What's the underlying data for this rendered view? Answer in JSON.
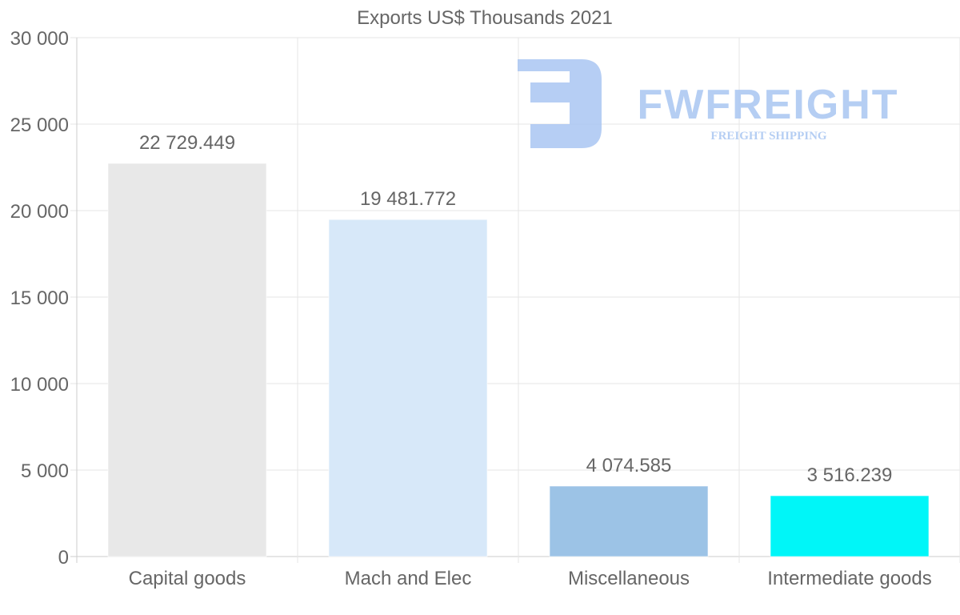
{
  "chart_data": {
    "type": "bar",
    "title": "Exports US$ Thousands 2021",
    "categories": [
      "Capital goods",
      "Mach and Elec",
      "Miscellaneous",
      "Intermediate goods"
    ],
    "values": [
      22729.449,
      19481.772,
      4074.585,
      3516.239
    ],
    "data_labels": [
      "22 729.449",
      "19 481.772",
      "4 074.585",
      "3 516.239"
    ],
    "colors": [
      "#e8e8e8",
      "#d7e8f9",
      "#9cc3e6",
      "#00f6f8"
    ],
    "xlabel": "",
    "ylabel": "",
    "ylim": [
      0,
      30000
    ],
    "y_ticks": [
      0,
      5000,
      10000,
      15000,
      20000,
      25000,
      30000
    ],
    "y_tick_labels": [
      "0",
      "5 000",
      "10 000",
      "15 000",
      "20 000",
      "25 000",
      "30 000"
    ],
    "grid": true,
    "legend": "none"
  },
  "watermark": {
    "brand": "FWFREIGHT",
    "tagline": "FREIGHT SHIPPING",
    "color": "#a9c6f2"
  }
}
